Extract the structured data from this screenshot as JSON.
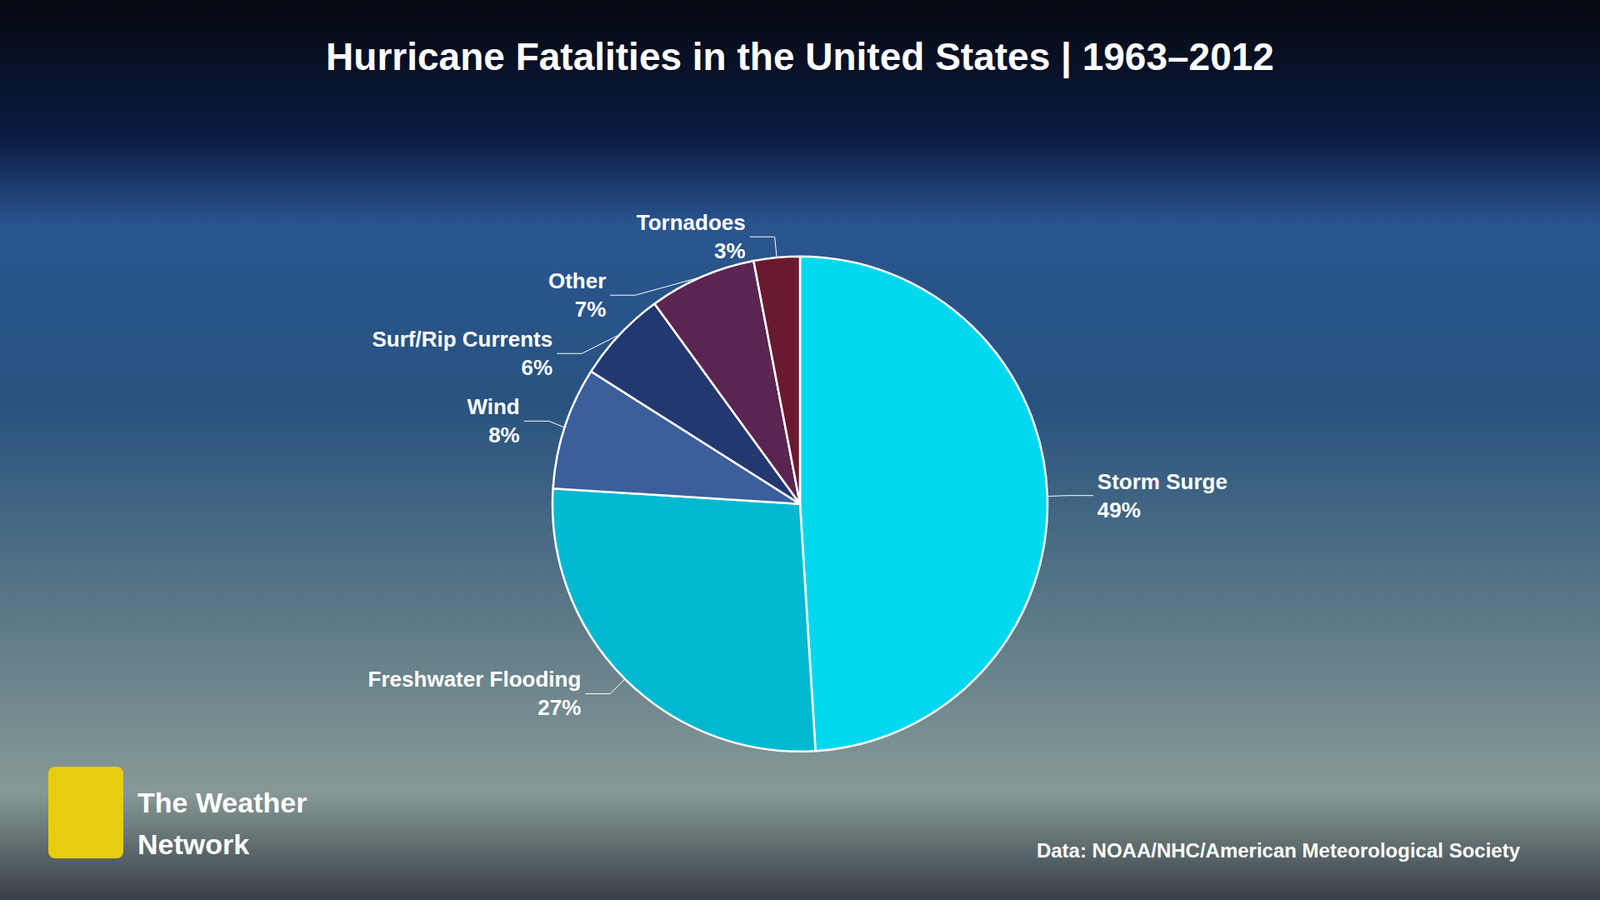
{
  "chart_data": {
    "type": "pie",
    "title": "Hurricane Fatalities in the United States | 1963–2012",
    "categories": [
      "Storm Surge",
      "Freshwater Flooding",
      "Wind",
      "Surf/Rip Currents",
      "Other",
      "Tornadoes"
    ],
    "values": [
      49,
      27,
      8,
      6,
      7,
      3
    ],
    "value_labels": [
      "49%",
      "27%",
      "8%",
      "6%",
      "7%",
      "3%"
    ],
    "colors": [
      "#00d8f0",
      "#00b8d0",
      "#3a5f9a",
      "#243870",
      "#5a2550",
      "#6a1a30"
    ],
    "data_labels": true,
    "legend": false,
    "annotations": [
      "Data: NOAA/NHC/American Meteorological Society",
      "The Weather",
      "Network"
    ]
  }
}
